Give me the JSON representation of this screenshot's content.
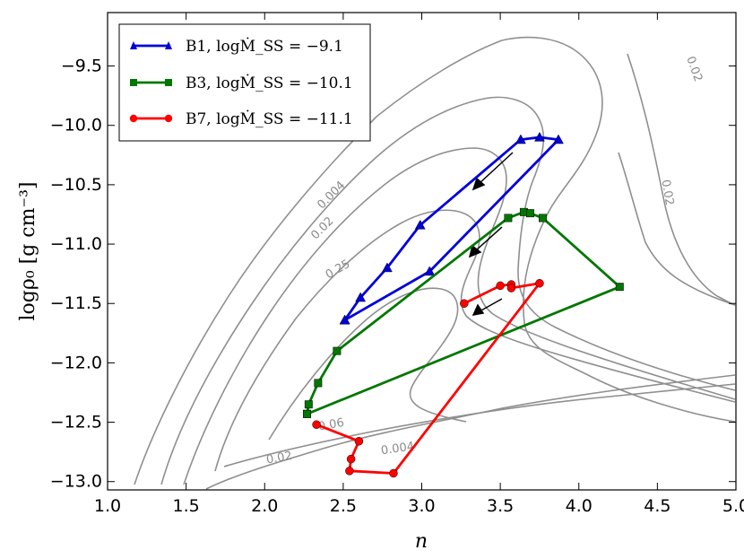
{
  "chart_data": {
    "type": "line",
    "title": "",
    "xlabel": "n",
    "ylabel": "logρ₀ [g cm⁻³]",
    "xlim": [
      1.0,
      5.0
    ],
    "ylim": [
      -13.07,
      -9.05
    ],
    "x_ticks": [
      "1.0",
      "1.5",
      "2.0",
      "2.5",
      "3.0",
      "3.5",
      "4.0",
      "4.5",
      "5.0"
    ],
    "y_ticks": [
      "-9.5",
      "-10.0",
      "-10.5",
      "-11.0",
      "-11.5",
      "-12.0",
      "-12.5",
      "-13.0"
    ],
    "x_tick_values": [
      1.0,
      1.5,
      2.0,
      2.5,
      3.0,
      3.5,
      4.0,
      4.5,
      5.0
    ],
    "y_tick_values": [
      -9.5,
      -10.0,
      -10.5,
      -11.0,
      -11.5,
      -12.0,
      -12.5,
      -13.0
    ],
    "grid": false,
    "legend_position": "top-left",
    "series": [
      {
        "name": "B1, logṀ_SS = −9.1",
        "color": "#0000dd",
        "marker": "triangle",
        "x": [
          2.51,
          2.61,
          2.78,
          2.99,
          3.63,
          3.75,
          3.87,
          3.05,
          2.51
        ],
        "y": [
          -11.64,
          -11.45,
          -11.2,
          -10.84,
          -10.12,
          -10.1,
          -10.12,
          -11.23,
          -11.64
        ]
      },
      {
        "name": "B3, logṀ_SS = −10.1",
        "color": "#007700",
        "marker": "square",
        "x": [
          2.27,
          2.28,
          2.34,
          2.46,
          3.55,
          3.65,
          3.69,
          3.77,
          4.26,
          2.27
        ],
        "y": [
          -12.43,
          -12.35,
          -12.17,
          -11.9,
          -10.78,
          -10.73,
          -10.74,
          -10.78,
          -11.36,
          -12.43
        ]
      },
      {
        "name": "B7, logṀ_SS = −11.1",
        "color": "#ff0000",
        "marker": "circle",
        "x": [
          3.27,
          3.5,
          3.57,
          3.57,
          3.75,
          2.82,
          2.54,
          2.55,
          2.6,
          2.33
        ],
        "y": [
          -11.5,
          -11.35,
          -11.34,
          -11.37,
          -11.33,
          -12.93,
          -12.91,
          -12.81,
          -12.66,
          -12.52
        ]
      }
    ],
    "contour_labels": [
      "0.004",
      "0.02",
      "0.25",
      "0.02",
      "0.02",
      "0.06",
      "0.02",
      "0.004"
    ]
  }
}
